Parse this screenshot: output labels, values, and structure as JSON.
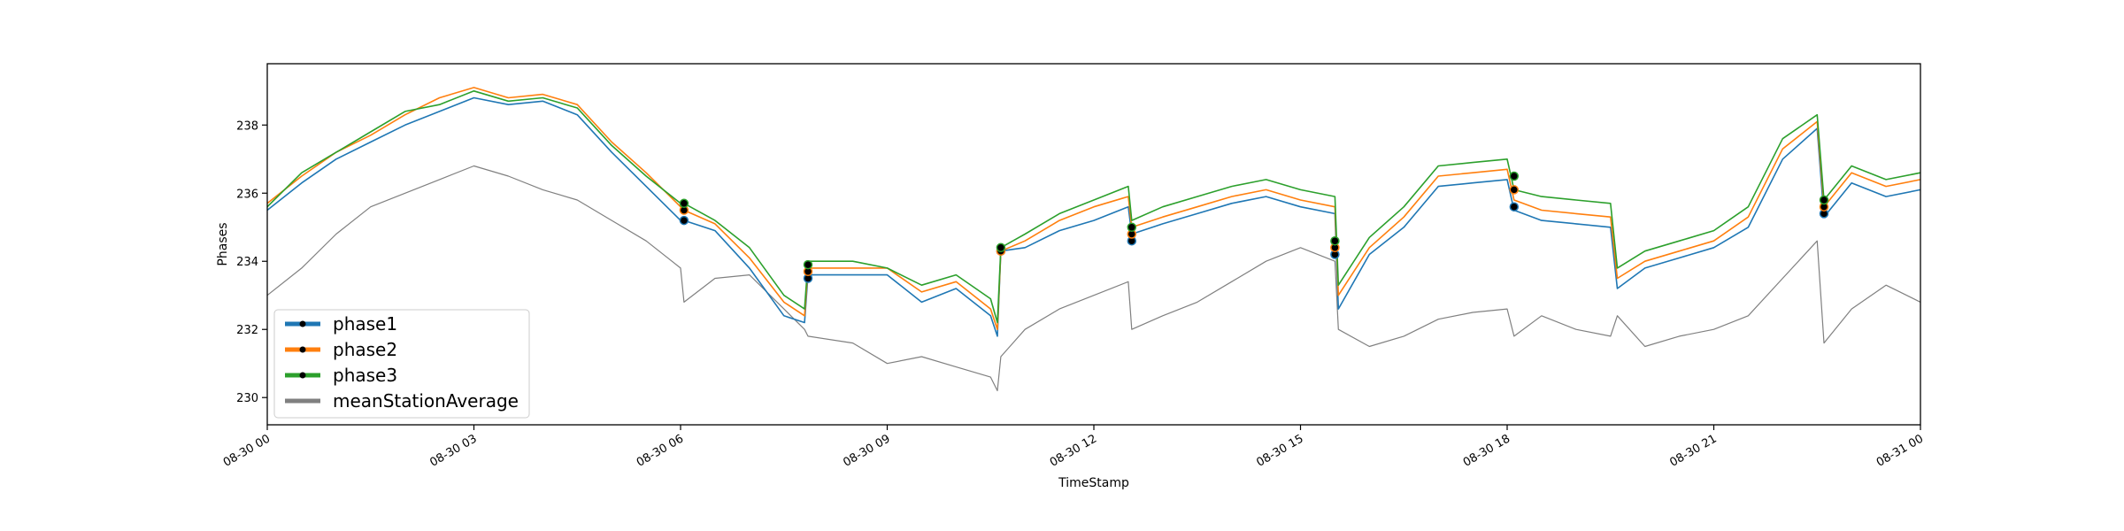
{
  "chart_data": {
    "type": "line",
    "title": "",
    "xlabel": "TimeStamp",
    "ylabel": "Phases",
    "x_unit": "hours since 08-30 00:00",
    "xlim": [
      0,
      24
    ],
    "ylim": [
      229.2,
      239.8
    ],
    "x_ticks": [
      {
        "value": 0,
        "label": "08-30 00"
      },
      {
        "value": 3,
        "label": "08-30 03"
      },
      {
        "value": 6,
        "label": "08-30 06"
      },
      {
        "value": 9,
        "label": "08-30 09"
      },
      {
        "value": 12,
        "label": "08-30 12"
      },
      {
        "value": 15,
        "label": "08-30 15"
      },
      {
        "value": 18,
        "label": "08-30 18"
      },
      {
        "value": 21,
        "label": "08-30 21"
      },
      {
        "value": 24,
        "label": "08-31 00"
      }
    ],
    "y_ticks": [
      {
        "value": 230,
        "label": "230"
      },
      {
        "value": 232,
        "label": "232"
      },
      {
        "value": 234,
        "label": "234"
      },
      {
        "value": 236,
        "label": "236"
      },
      {
        "value": 238,
        "label": "238"
      }
    ],
    "grid": false,
    "legend_position": "lower-left",
    "x": [
      0,
      0.5,
      1,
      1.5,
      2,
      2.5,
      3,
      3.5,
      4,
      4.5,
      5,
      5.5,
      6,
      6.05,
      6.5,
      7,
      7.5,
      7.8,
      7.85,
      8.5,
      9,
      9.5,
      10,
      10.5,
      10.6,
      10.65,
      11,
      11.5,
      12,
      12.5,
      12.55,
      13,
      13.5,
      14,
      14.5,
      15,
      15.5,
      15.55,
      16,
      16.5,
      17,
      17.5,
      18,
      18.1,
      18.5,
      19,
      19.5,
      19.6,
      20,
      20.5,
      21,
      21.5,
      22,
      22.5,
      22.6,
      23,
      23.5,
      24
    ],
    "series": [
      {
        "name": "phase1",
        "color": "#1f77b4",
        "linewidth": 3,
        "values": [
          235.5,
          236.3,
          237.0,
          237.5,
          238.0,
          238.4,
          238.8,
          238.6,
          238.7,
          238.3,
          237.2,
          236.2,
          235.2,
          235.2,
          234.9,
          233.8,
          232.4,
          232.2,
          233.6,
          233.6,
          233.6,
          232.8,
          233.2,
          232.4,
          231.8,
          234.3,
          234.4,
          234.9,
          235.2,
          235.6,
          234.8,
          235.1,
          235.4,
          235.7,
          235.9,
          235.6,
          235.4,
          232.6,
          234.2,
          235.0,
          236.2,
          236.3,
          236.4,
          235.5,
          235.2,
          235.1,
          235.0,
          233.2,
          233.8,
          234.1,
          234.4,
          235.0,
          237.0,
          237.9,
          235.3,
          236.3,
          235.9,
          236.1
        ]
      },
      {
        "name": "phase2",
        "color": "#ff7f0e",
        "linewidth": 3,
        "values": [
          235.7,
          236.5,
          237.2,
          237.7,
          238.3,
          238.8,
          239.1,
          238.8,
          238.9,
          238.6,
          237.5,
          236.6,
          235.6,
          235.5,
          235.1,
          234.1,
          232.8,
          232.4,
          233.8,
          233.8,
          233.8,
          233.1,
          233.4,
          232.6,
          232.0,
          234.3,
          234.6,
          235.2,
          235.6,
          235.9,
          235.0,
          235.3,
          235.6,
          235.9,
          236.1,
          235.8,
          235.6,
          233.0,
          234.4,
          235.3,
          236.5,
          236.6,
          236.7,
          235.8,
          235.5,
          235.4,
          235.3,
          233.5,
          234.0,
          234.3,
          234.6,
          235.3,
          237.3,
          238.1,
          235.6,
          236.6,
          236.2,
          236.4
        ]
      },
      {
        "name": "phase3",
        "color": "#2ca02c",
        "linewidth": 3,
        "values": [
          235.6,
          236.6,
          237.2,
          237.8,
          238.4,
          238.6,
          239.0,
          238.7,
          238.8,
          238.5,
          237.4,
          236.5,
          235.7,
          235.7,
          235.2,
          234.4,
          233.0,
          232.6,
          234.0,
          234.0,
          233.8,
          233.3,
          233.6,
          232.9,
          232.2,
          234.4,
          234.8,
          235.4,
          235.8,
          236.2,
          235.2,
          235.6,
          235.9,
          236.2,
          236.4,
          236.1,
          235.9,
          233.3,
          234.7,
          235.6,
          236.8,
          236.9,
          237.0,
          236.1,
          235.9,
          235.8,
          235.7,
          233.8,
          234.3,
          234.6,
          234.9,
          235.6,
          237.6,
          238.3,
          235.8,
          236.8,
          236.4,
          236.6
        ]
      },
      {
        "name": "meanStationAverage",
        "color": "#808080",
        "linewidth": 3,
        "values": [
          233.0,
          233.8,
          234.8,
          235.6,
          236.0,
          236.4,
          236.8,
          236.5,
          236.1,
          235.8,
          235.2,
          234.6,
          233.8,
          232.8,
          233.5,
          233.6,
          232.6,
          232.0,
          231.8,
          231.6,
          231.0,
          231.2,
          230.9,
          230.6,
          230.2,
          231.2,
          232.0,
          232.6,
          233.0,
          233.4,
          232.0,
          232.4,
          232.8,
          233.4,
          234.0,
          234.4,
          234.0,
          232.0,
          231.5,
          231.8,
          232.3,
          232.5,
          232.6,
          231.8,
          232.4,
          232.0,
          231.8,
          232.4,
          231.5,
          231.8,
          232.0,
          232.4,
          233.5,
          234.6,
          231.6,
          232.6,
          233.3,
          232.8
        ]
      }
    ],
    "markers": {
      "note": "black dot markers at step changes",
      "points": [
        {
          "x": 6.05,
          "y": [
            235.2,
            235.5,
            235.7
          ]
        },
        {
          "x": 7.85,
          "y": [
            233.5,
            233.7,
            233.9
          ]
        },
        {
          "x": 10.65,
          "y": [
            234.3,
            234.3,
            234.4
          ]
        },
        {
          "x": 12.55,
          "y": [
            234.6,
            234.8,
            235.0
          ]
        },
        {
          "x": 15.5,
          "y": [
            234.2,
            234.4,
            234.6
          ]
        },
        {
          "x": 18.1,
          "y": [
            235.6,
            236.1,
            236.5
          ]
        },
        {
          "x": 22.6,
          "y": [
            235.4,
            235.6,
            235.8
          ]
        }
      ]
    }
  }
}
